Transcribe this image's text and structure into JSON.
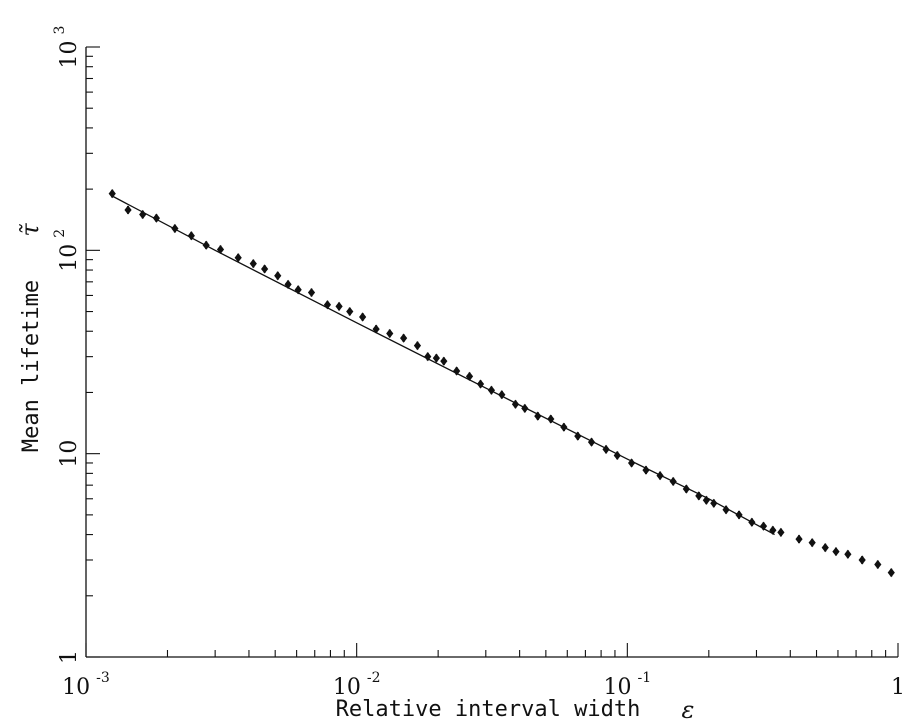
{
  "chart_data": {
    "type": "scatter",
    "title": "",
    "xlabel": "Relative interval width",
    "xlabel_symbol": "ε",
    "ylabel": "Mean lifetime",
    "ylabel_symbol": "τ̃",
    "x_scale": "log",
    "y_scale": "log",
    "xlim": [
      0.001,
      1
    ],
    "ylim": [
      1,
      1000
    ],
    "grid": false,
    "legend": "none",
    "x_ticks": [
      {
        "value": 0.001,
        "base": "10",
        "exp": "-3"
      },
      {
        "value": 0.01,
        "base": "10",
        "exp": "-2"
      },
      {
        "value": 0.1,
        "base": "10",
        "exp": "-1"
      },
      {
        "value": 1,
        "base": "1",
        "exp": ""
      }
    ],
    "y_ticks": [
      {
        "value": 1,
        "base": "1",
        "exp": ""
      },
      {
        "value": 10,
        "base": "10",
        "exp": ""
      },
      {
        "value": 100,
        "base": "10",
        "exp": "2"
      },
      {
        "value": 1000,
        "base": "10",
        "exp": "3"
      }
    ],
    "series": [
      {
        "kind": "points",
        "marker": "filled-diamond-with-error-bar",
        "x": [
          0.00125,
          0.00143,
          0.00162,
          0.00182,
          0.00213,
          0.00245,
          0.00278,
          0.00314,
          0.00365,
          0.00415,
          0.00457,
          0.00511,
          0.00558,
          0.00608,
          0.00681,
          0.0078,
          0.00861,
          0.00943,
          0.01052,
          0.0118,
          0.01325,
          0.01491,
          0.01677,
          0.01831,
          0.0197,
          0.02099,
          0.02341,
          0.02612,
          0.02868,
          0.03147,
          0.03438,
          0.03861,
          0.04181,
          0.04669,
          0.05215,
          0.05829,
          0.06562,
          0.07375,
          0.08344,
          0.0918,
          0.10369,
          0.1172,
          0.13211,
          0.1477,
          0.16518,
          0.1837,
          0.19584,
          0.20868,
          0.23159,
          0.25863,
          0.28848,
          0.31853,
          0.34485,
          0.36931,
          0.43086,
          0.48183,
          0.5385,
          0.58996,
          0.65286,
          0.73722,
          0.84216,
          0.94434
        ],
        "y": [
          190,
          158,
          150,
          144,
          128,
          118,
          106,
          101,
          92,
          86,
          81,
          75,
          68,
          64,
          62,
          54,
          53,
          50,
          47,
          41,
          39,
          37,
          34,
          30,
          29.5,
          28.5,
          25.5,
          24,
          22,
          20.5,
          19.5,
          17.5,
          16.7,
          15.3,
          14.8,
          13.5,
          12.2,
          11.4,
          10.5,
          9.8,
          9.0,
          8.3,
          7.8,
          7.3,
          6.7,
          6.2,
          5.9,
          5.7,
          5.3,
          5.0,
          4.6,
          4.4,
          4.2,
          4.1,
          3.8,
          3.65,
          3.45,
          3.3,
          3.2,
          3.0,
          2.85,
          2.6
        ],
        "error": [
          0.045,
          0.045,
          0.045,
          0.045,
          0.045,
          0.045,
          0.045,
          0.045,
          0.045,
          0.045,
          0.045,
          0.045,
          0.045,
          0.045,
          0.045,
          0.045,
          0.045,
          0.045,
          0.045,
          0.045,
          0.045,
          0.045,
          0.045,
          0.045,
          0.045,
          0.045,
          0.045,
          0.045,
          0.045,
          0.045,
          0.045,
          0.045,
          0.045,
          0.045,
          0.045,
          0.045,
          0.045,
          0.045,
          0.045,
          0.045,
          0.045,
          0.045,
          0.045,
          0.045,
          0.045,
          0.045,
          0.045,
          0.045,
          0.045,
          0.045,
          0.045,
          0.045,
          0.045,
          0.045,
          0.045,
          0.045,
          0.045,
          0.045,
          0.045,
          0.045,
          0.045,
          0.045
        ]
      },
      {
        "kind": "fit-line",
        "x": [
          0.00125,
          0.003,
          0.01,
          0.03,
          0.1,
          0.2,
          0.35
        ],
        "y": [
          185,
          100,
          44,
          21,
          9.4,
          6.0,
          4.0
        ]
      }
    ]
  }
}
